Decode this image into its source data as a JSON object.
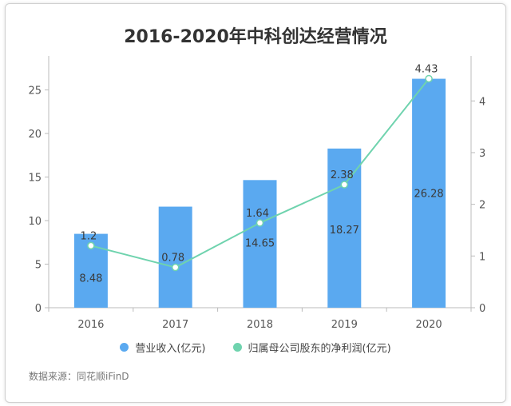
{
  "chart_data": {
    "type": "bar",
    "title": "2016-2020年中科创达经营情况",
    "categories": [
      "2016",
      "2017",
      "2018",
      "2019",
      "2020"
    ],
    "series": [
      {
        "name": "营业收入(亿元)",
        "type": "bar",
        "axis": "left",
        "values": [
          8.48,
          11.6,
          14.65,
          18.27,
          26.28
        ],
        "labels": [
          "8.48",
          "",
          "14.65",
          "18.27",
          "26.28"
        ],
        "color": "#5aa9f0"
      },
      {
        "name": "归属母公司股东的净利润(亿元)",
        "type": "line",
        "axis": "right",
        "values": [
          1.2,
          0.78,
          1.64,
          2.38,
          4.43
        ],
        "labels": [
          "1.2",
          "0.78",
          "1.64",
          "2.38",
          "4.43"
        ],
        "color": "#6fd3ae"
      }
    ],
    "y_left": {
      "ticks": [
        "0",
        "5",
        "10",
        "15",
        "20",
        "25"
      ],
      "lim": [
        0,
        28.9
      ]
    },
    "y_right": {
      "ticks": [
        "0",
        "1",
        "2",
        "3",
        "4"
      ],
      "lim": [
        0,
        4.87
      ]
    },
    "grid": false,
    "legend_position": "bottom"
  },
  "source": "数据来源：同花顺iFinD"
}
